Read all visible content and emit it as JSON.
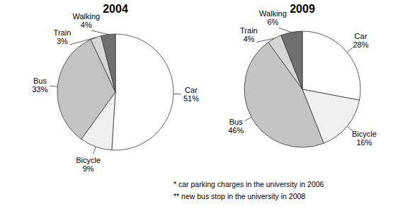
{
  "chart_data": [
    {
      "type": "pie",
      "title": "2004",
      "categories": [
        "Car",
        "Bicycle",
        "Bus",
        "Train",
        "Walking"
      ],
      "values": [
        51,
        9,
        33,
        3,
        4
      ],
      "value_labels": [
        "51%",
        "9%",
        "33%",
        "3%",
        "4%"
      ],
      "colors": [
        "#ffffff",
        "#f0f0f0",
        "#c4c4c4",
        "#d6d6d6",
        "#707070"
      ],
      "data_labels": true
    },
    {
      "type": "pie",
      "title": "2009",
      "categories": [
        "Car",
        "Bicycle",
        "Bus",
        "Train",
        "Walking"
      ],
      "values": [
        28,
        16,
        46,
        4,
        6
      ],
      "value_labels": [
        "28%",
        "16%",
        "46%",
        "4%",
        "6%"
      ],
      "colors": [
        "#ffffff",
        "#f0f0f0",
        "#c4c4c4",
        "#d6d6d6",
        "#707070"
      ],
      "data_labels": true
    }
  ],
  "notes": [
    "* car parking charges in the university in 2006",
    "** new bus stop in the university in 2008"
  ]
}
